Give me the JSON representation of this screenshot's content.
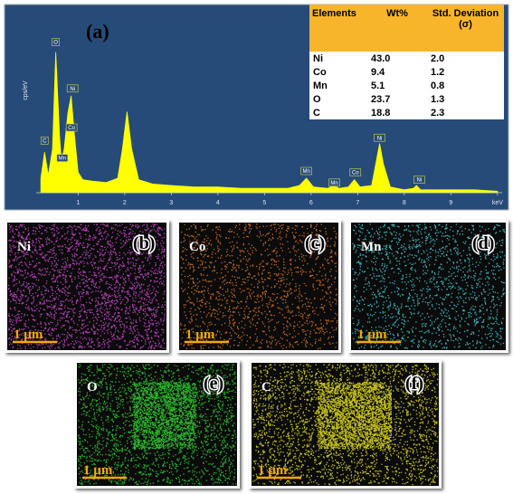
{
  "chart_data": {
    "type": "area",
    "panel_label": "(a)",
    "ylabel": "cps/eV",
    "x": [
      0.2,
      0.28,
      0.36,
      0.45,
      0.52,
      0.6,
      0.64,
      0.7,
      0.78,
      0.85,
      0.92,
      1.0,
      1.1,
      1.3,
      1.6,
      1.85,
      1.95,
      2.05,
      2.15,
      2.3,
      2.6,
      3.0,
      3.5,
      4.0,
      4.5,
      5.0,
      5.5,
      5.75,
      5.9,
      6.05,
      6.35,
      6.49,
      6.6,
      6.8,
      6.93,
      7.05,
      7.3,
      7.4,
      7.47,
      7.55,
      7.7,
      8.0,
      8.2,
      8.26,
      8.35,
      8.7,
      9.0,
      9.5,
      10.0
    ],
    "values": [
      10,
      28,
      12,
      30,
      97,
      40,
      22,
      30,
      55,
      67,
      40,
      14,
      9,
      8,
      7,
      10,
      30,
      56,
      30,
      9,
      6,
      5,
      4,
      4,
      3,
      3,
      3,
      5,
      10,
      4,
      3,
      5,
      3,
      4,
      9,
      4,
      5,
      22,
      34,
      20,
      4,
      2,
      3,
      5,
      2,
      2,
      2,
      2,
      1
    ],
    "color": "#ffff00",
    "xlim": [
      0.1,
      10.1
    ],
    "xticks": [
      1,
      2,
      3,
      4,
      5,
      6,
      7,
      8,
      9,
      {
        "value": 10,
        "label": "keV"
      }
    ],
    "ylim": [
      0,
      100
    ],
    "annotations": [
      {
        "text": "C",
        "x": 0.28,
        "y": 36
      },
      {
        "text": "O",
        "x": 0.52,
        "y": 104
      },
      {
        "text": "Mn",
        "x": 0.66,
        "y": 24
      },
      {
        "text": "Ni",
        "x": 0.88,
        "y": 72
      },
      {
        "text": "Co",
        "x": 0.86,
        "y": 45
      },
      {
        "text": "Mn",
        "x": 5.9,
        "y": 15
      },
      {
        "text": "Mn",
        "x": 6.5,
        "y": 7
      },
      {
        "text": "Co",
        "x": 6.95,
        "y": 14
      },
      {
        "text": "Ni",
        "x": 7.47,
        "y": 38
      },
      {
        "text": "Ni",
        "x": 8.32,
        "y": 9
      }
    ]
  },
  "table": {
    "columns": [
      "Elements",
      "Wt%",
      "Std. Deviation (σ)"
    ],
    "rows": [
      [
        "Ni",
        "43.0",
        "2.0"
      ],
      [
        "Co",
        "9.4",
        "1.2"
      ],
      [
        "Mn",
        "5.1",
        "0.8"
      ],
      [
        "O",
        "23.7",
        "1.3"
      ],
      [
        "C",
        "18.8",
        "2.3"
      ]
    ]
  },
  "maps": [
    {
      "element": "Ni",
      "label": "(b)",
      "scale_bar": "1 µm",
      "color": "#c444c8"
    },
    {
      "element": "Co",
      "label": "(c)",
      "scale_bar": "1 µm",
      "color": "#d6731e"
    },
    {
      "element": "Mn",
      "label": "(d)",
      "scale_bar": "1 µm",
      "color": "#3ec4cc"
    },
    {
      "element": "O",
      "label": "(e)",
      "scale_bar": "1 µm",
      "color": "#2fc42f"
    },
    {
      "element": "C",
      "label": "(f)",
      "scale_bar": "1 µm",
      "color": "#d8d41e"
    }
  ]
}
